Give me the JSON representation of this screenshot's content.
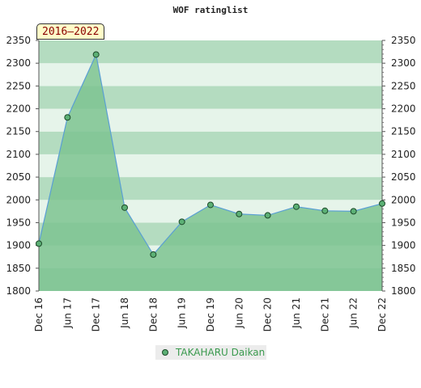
{
  "chart_data": {
    "type": "area",
    "title": "WOF ratinglist",
    "period_label": "2016–2022",
    "xlabel": "",
    "ylabel": "",
    "categories": [
      "Dec 16",
      "Jun 17",
      "Dec 17",
      "Jun 18",
      "Dec 18",
      "Jun 19",
      "Dec 19",
      "Jun 20",
      "Dec 20",
      "Jun 21",
      "Dec 21",
      "Jun 22",
      "Dec 22"
    ],
    "series": [
      {
        "name": "TAKAHARU Daikan",
        "values": [
          1904,
          2181,
          2319,
          1983,
          1880,
          1952,
          1989,
          1969,
          1966,
          1985,
          1976,
          1975,
          1992
        ]
      }
    ],
    "ylim": [
      1800,
      2350
    ],
    "yticks": [
      1800,
      1850,
      1900,
      1950,
      2000,
      2050,
      2100,
      2150,
      2200,
      2250,
      2300,
      2350
    ],
    "y_axis_both_sides": true,
    "grid": false,
    "legend_position": "bottom",
    "colors": {
      "fill": "#7dc391",
      "line": "#5a9fd4",
      "marker": "#5cb075",
      "marker_edge": "#1c4a29",
      "band_dark": "#b4dcc0",
      "band_light": "#e6f4ea",
      "badge_text": "#8a0000",
      "legend_text": "#3a9a4e"
    }
  }
}
